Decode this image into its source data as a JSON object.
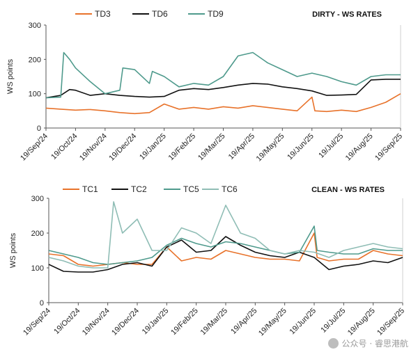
{
  "chart_data": [
    {
      "type": "line",
      "title": "DIRTY - WS RATES",
      "ylabel": "WS points",
      "ylim": [
        0,
        300
      ],
      "yticks": [
        "0",
        "100",
        "200",
        "300"
      ],
      "xticks": [
        "19/Sep/24",
        "19/Oct/24",
        "19/Nov/24",
        "19/Dec/24",
        "19/Jan/25",
        "19/Feb/25",
        "19/Mar/25",
        "19/Apr/25",
        "19/May/25",
        "19/Jun/25",
        "19/Jul/25",
        "19/Aug/25",
        "19/Sep/25"
      ],
      "x_range_months": [
        0,
        12
      ],
      "series": [
        {
          "name": "TD3",
          "color": "#E8722A",
          "points": [
            [
              0,
              58
            ],
            [
              0.5,
              55
            ],
            [
              1,
              52
            ],
            [
              1.5,
              54
            ],
            [
              2,
              50
            ],
            [
              2.5,
              45
            ],
            [
              3,
              42
            ],
            [
              3.5,
              45
            ],
            [
              4,
              70
            ],
            [
              4.5,
              55
            ],
            [
              5,
              60
            ],
            [
              5.5,
              55
            ],
            [
              6,
              62
            ],
            [
              6.5,
              58
            ],
            [
              7,
              65
            ],
            [
              7.5,
              60
            ],
            [
              8,
              55
            ],
            [
              8.5,
              50
            ],
            [
              9,
              90
            ],
            [
              9.1,
              50
            ],
            [
              9.5,
              48
            ],
            [
              10,
              52
            ],
            [
              10.5,
              48
            ],
            [
              11,
              60
            ],
            [
              11.5,
              75
            ],
            [
              12,
              100
            ]
          ]
        },
        {
          "name": "TD6",
          "color": "#111111",
          "points": [
            [
              0,
              88
            ],
            [
              0.5,
              95
            ],
            [
              0.8,
              112
            ],
            [
              1,
              110
            ],
            [
              1.5,
              95
            ],
            [
              2,
              100
            ],
            [
              2.5,
              95
            ],
            [
              3,
              92
            ],
            [
              3.5,
              90
            ],
            [
              4,
              92
            ],
            [
              4.5,
              110
            ],
            [
              5,
              115
            ],
            [
              5.5,
              112
            ],
            [
              6,
              118
            ],
            [
              6.5,
              125
            ],
            [
              7,
              130
            ],
            [
              7.5,
              128
            ],
            [
              8,
              120
            ],
            [
              8.5,
              115
            ],
            [
              9,
              108
            ],
            [
              9.5,
              95
            ],
            [
              10,
              96
            ],
            [
              10.5,
              98
            ],
            [
              11,
              140
            ],
            [
              11.5,
              142
            ],
            [
              12,
              142
            ]
          ]
        },
        {
          "name": "TD9",
          "color": "#4E9A8C",
          "points": [
            [
              0,
              88
            ],
            [
              0.5,
              90
            ],
            [
              0.6,
              220
            ],
            [
              0.8,
              200
            ],
            [
              1,
              175
            ],
            [
              1.5,
              135
            ],
            [
              2,
              100
            ],
            [
              2.5,
              110
            ],
            [
              2.6,
              175
            ],
            [
              3,
              170
            ],
            [
              3.5,
              130
            ],
            [
              3.6,
              165
            ],
            [
              4,
              150
            ],
            [
              4.5,
              120
            ],
            [
              5,
              130
            ],
            [
              5.5,
              125
            ],
            [
              6,
              150
            ],
            [
              6.5,
              210
            ],
            [
              7,
              220
            ],
            [
              7.5,
              190
            ],
            [
              8,
              170
            ],
            [
              8.5,
              150
            ],
            [
              9,
              160
            ],
            [
              9.5,
              150
            ],
            [
              10,
              135
            ],
            [
              10.5,
              125
            ],
            [
              11,
              150
            ],
            [
              11.5,
              155
            ],
            [
              12,
              155
            ]
          ]
        }
      ]
    },
    {
      "type": "line",
      "title": "CLEAN - WS RATES",
      "ylabel": "WS points",
      "ylim": [
        0,
        300
      ],
      "yticks": [
        "0",
        "100",
        "200",
        "300"
      ],
      "xticks": [
        "19/Sep/24",
        "19/Oct/24",
        "19/Nov/24",
        "19/Dec/24",
        "19/Jan/25",
        "19/Feb/25",
        "19/Mar/25",
        "19/Apr/25",
        "19/May/25",
        "19/Jun/25",
        "19/Jul/25",
        "19/Aug/25",
        "19/Sep/25"
      ],
      "x_range_months": [
        0,
        12
      ],
      "series": [
        {
          "name": "TC1",
          "color": "#E8722A",
          "points": [
            [
              0,
              140
            ],
            [
              0.5,
              135
            ],
            [
              1,
              110
            ],
            [
              1.5,
              105
            ],
            [
              2,
              110
            ],
            [
              2.5,
              115
            ],
            [
              3,
              110
            ],
            [
              3.5,
              110
            ],
            [
              4,
              160
            ],
            [
              4.5,
              120
            ],
            [
              5,
              130
            ],
            [
              5.5,
              125
            ],
            [
              6,
              150
            ],
            [
              6.5,
              140
            ],
            [
              7,
              130
            ],
            [
              7.5,
              125
            ],
            [
              8,
              125
            ],
            [
              8.5,
              120
            ],
            [
              9,
              200
            ],
            [
              9.1,
              130
            ],
            [
              9.5,
              120
            ],
            [
              10,
              125
            ],
            [
              10.5,
              125
            ],
            [
              11,
              150
            ],
            [
              11.5,
              140
            ],
            [
              12,
              135
            ]
          ]
        },
        {
          "name": "TC2",
          "color": "#111111",
          "points": [
            [
              0,
              110
            ],
            [
              0.5,
              90
            ],
            [
              1,
              88
            ],
            [
              1.5,
              88
            ],
            [
              2,
              95
            ],
            [
              2.5,
              110
            ],
            [
              3,
              115
            ],
            [
              3.5,
              105
            ],
            [
              4,
              160
            ],
            [
              4.5,
              180
            ],
            [
              5,
              145
            ],
            [
              5.5,
              150
            ],
            [
              6,
              190
            ],
            [
              6.5,
              165
            ],
            [
              7,
              145
            ],
            [
              7.5,
              135
            ],
            [
              8,
              130
            ],
            [
              8.5,
              145
            ],
            [
              9,
              130
            ],
            [
              9.5,
              95
            ],
            [
              10,
              105
            ],
            [
              10.5,
              110
            ],
            [
              11,
              120
            ],
            [
              11.5,
              115
            ],
            [
              12,
              130
            ]
          ]
        },
        {
          "name": "TC5",
          "color": "#4E9A8C",
          "points": [
            [
              0,
              150
            ],
            [
              0.5,
              140
            ],
            [
              1,
              130
            ],
            [
              1.5,
              115
            ],
            [
              2,
              110
            ],
            [
              2.5,
              115
            ],
            [
              3,
              120
            ],
            [
              3.5,
              130
            ],
            [
              4,
              165
            ],
            [
              4.5,
              185
            ],
            [
              5,
              170
            ],
            [
              5.5,
              160
            ],
            [
              6,
              175
            ],
            [
              6.5,
              170
            ],
            [
              7,
              160
            ],
            [
              7.5,
              150
            ],
            [
              8,
              140
            ],
            [
              8.5,
              145
            ],
            [
              9,
              220
            ],
            [
              9.1,
              150
            ],
            [
              9.5,
              145
            ],
            [
              10,
              140
            ],
            [
              10.5,
              140
            ],
            [
              11,
              155
            ],
            [
              11.5,
              150
            ],
            [
              12,
              150
            ]
          ]
        },
        {
          "name": "TC6",
          "color": "#8FBDB5",
          "points": [
            [
              0,
              130
            ],
            [
              0.5,
              120
            ],
            [
              1,
              105
            ],
            [
              1.5,
              100
            ],
            [
              2,
              100
            ],
            [
              2.2,
              290
            ],
            [
              2.5,
              200
            ],
            [
              3,
              240
            ],
            [
              3.5,
              150
            ],
            [
              4,
              150
            ],
            [
              4.5,
              215
            ],
            [
              5,
              200
            ],
            [
              5.5,
              170
            ],
            [
              6,
              280
            ],
            [
              6.5,
              200
            ],
            [
              7,
              185
            ],
            [
              7.5,
              150
            ],
            [
              8,
              140
            ],
            [
              8.5,
              150
            ],
            [
              9,
              145
            ],
            [
              9.5,
              130
            ],
            [
              10,
              150
            ],
            [
              10.5,
              160
            ],
            [
              11,
              170
            ],
            [
              11.5,
              160
            ],
            [
              12,
              155
            ]
          ]
        }
      ]
    }
  ],
  "watermark": {
    "text": "公众号 · 睿思港航"
  }
}
